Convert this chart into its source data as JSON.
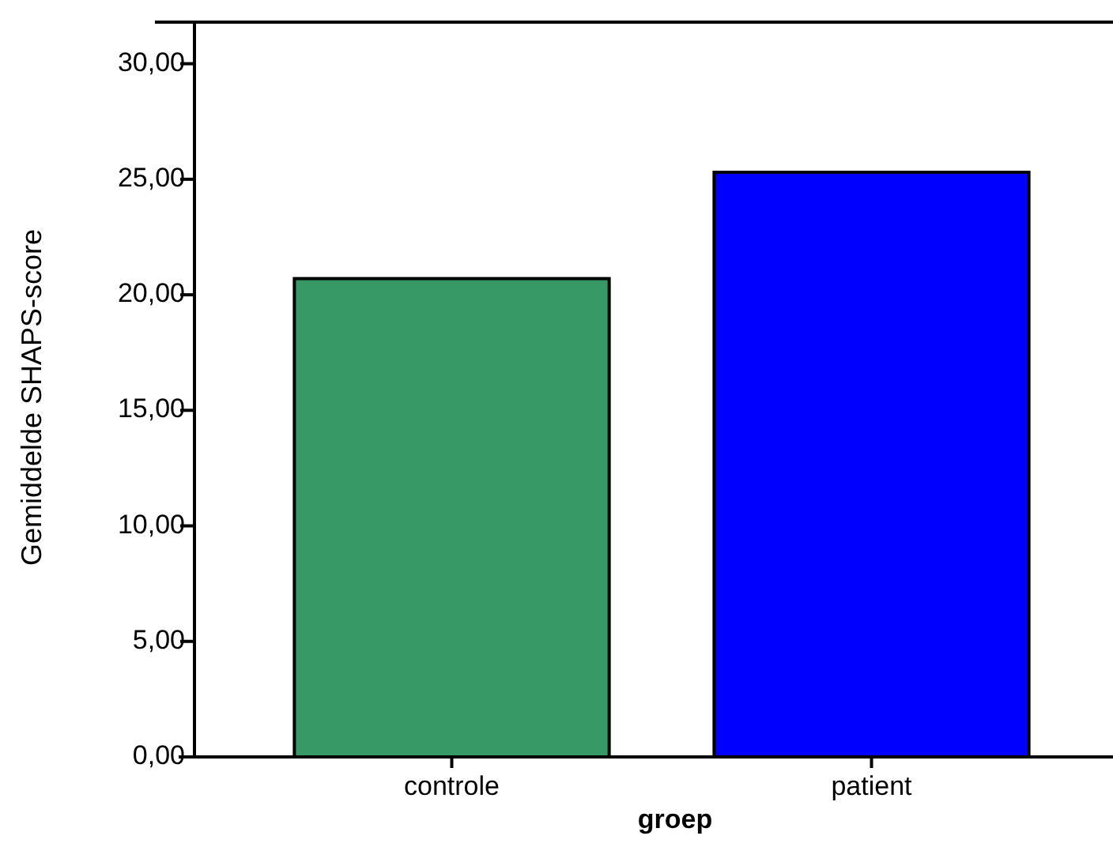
{
  "chart_data": {
    "type": "bar",
    "xlabel": "groep",
    "ylabel": "Gemiddelde SHAPS-score",
    "categories": [
      "controle",
      "patient"
    ],
    "values": [
      20.7,
      25.3
    ],
    "colors": [
      "#379966",
      "#0000ff"
    ],
    "ylim": [
      0,
      31.8
    ],
    "yticks": [
      {
        "value": 0,
        "label": "0,00"
      },
      {
        "value": 5,
        "label": "5,00"
      },
      {
        "value": 10,
        "label": "10,00"
      },
      {
        "value": 15,
        "label": "15,00"
      },
      {
        "value": 20,
        "label": "20,00"
      },
      {
        "value": 25,
        "label": "25,00"
      },
      {
        "value": 30,
        "label": "30,00"
      }
    ]
  }
}
